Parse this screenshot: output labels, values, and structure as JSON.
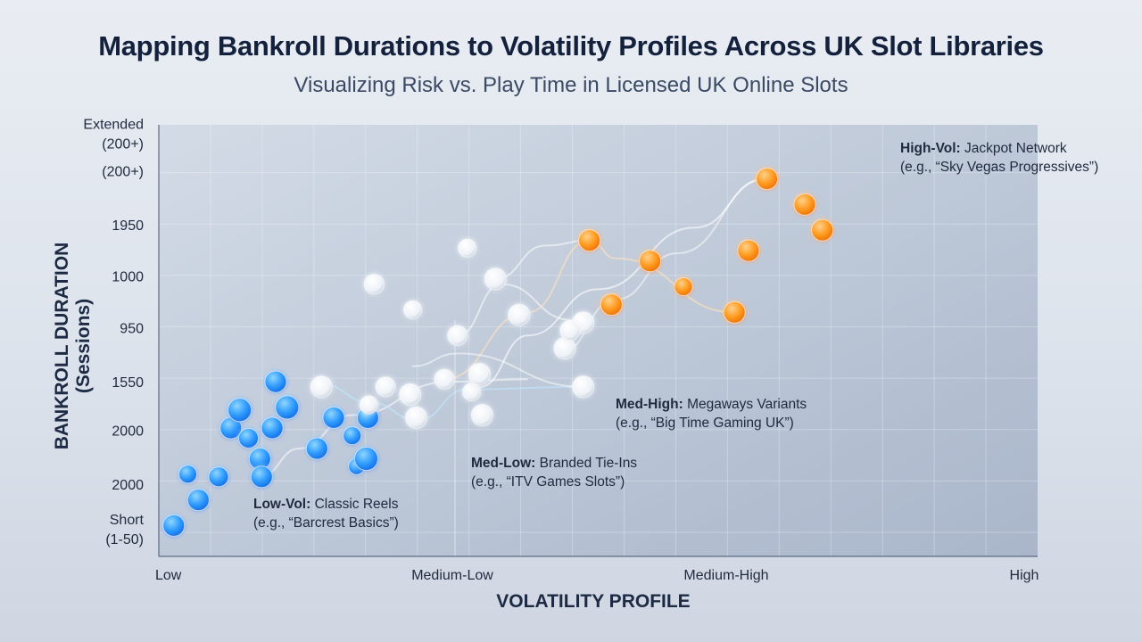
{
  "title": "Mapping Bankroll Durations to Volatility Profiles Across UK Slot Libraries",
  "subtitle": "Visualizing Risk vs. Play Time in Licensed UK Online Slots",
  "colors": {
    "low_vol": "#2f9bff",
    "med_low": "#ffffff",
    "med_high": "#ffffff",
    "high_vol": "#ff9a1f",
    "plot_bg": "#b9c5d6"
  },
  "chart_data": {
    "type": "scatter",
    "title": "Mapping Bankroll Durations to Volatility Profiles Across UK Slot Libraries",
    "subtitle": "Visualizing Risk vs. Play Time in Licensed UK Online Slots",
    "xlabel": "VOLATILITY PROFILE",
    "ylabel": [
      "BANKROLL DURATION",
      "(Sessions)"
    ],
    "x_ticks": [
      "Low",
      "Medium-Low",
      "Medium-High",
      "High"
    ],
    "xlim": [
      0,
      10
    ],
    "y_ticks": [
      [
        "Short",
        "(1-50)"
      ],
      [
        "2000"
      ],
      [
        "2000"
      ],
      [
        "1550"
      ],
      [
        "950"
      ],
      [
        "1000"
      ],
      [
        "1950"
      ],
      [
        "(200+)"
      ],
      [
        "Extended",
        "(200+)"
      ]
    ],
    "ylim": [
      0,
      8.4
    ],
    "grid": true,
    "legend": "none",
    "series": [
      {
        "name": "Low-Vol",
        "color": "#2f9bff",
        "points": [
          [
            0.17,
            0.6,
            12
          ],
          [
            0.33,
            1.6,
            10
          ],
          [
            0.45,
            1.1,
            12
          ],
          [
            0.68,
            1.55,
            11
          ],
          [
            0.82,
            2.5,
            12
          ],
          [
            0.92,
            2.85,
            13
          ],
          [
            1.02,
            2.3,
            11
          ],
          [
            1.15,
            1.9,
            12
          ],
          [
            1.17,
            1.55,
            12
          ],
          [
            1.33,
            3.4,
            12
          ],
          [
            1.29,
            2.5,
            12
          ],
          [
            1.46,
            2.9,
            13
          ],
          [
            1.99,
            2.7,
            12
          ],
          [
            1.8,
            2.1,
            12
          ],
          [
            2.2,
            2.35,
            10
          ],
          [
            2.25,
            1.75,
            9
          ],
          [
            2.36,
            1.9,
            13
          ],
          [
            2.38,
            2.7,
            12
          ]
        ]
      },
      {
        "name": "Med-Low",
        "color": "#ffffff",
        "points": [
          [
            1.85,
            3.3,
            12
          ],
          [
            2.39,
            2.95,
            10
          ],
          [
            2.45,
            5.3,
            11
          ],
          [
            2.58,
            3.3,
            11
          ],
          [
            2.86,
            3.15,
            12
          ],
          [
            2.93,
            2.7,
            12
          ],
          [
            2.89,
            4.8,
            10
          ],
          [
            3.25,
            3.45,
            11
          ],
          [
            3.4,
            4.3,
            11
          ],
          [
            3.51,
            6.0,
            10
          ],
          [
            3.56,
            3.2,
            10
          ],
          [
            3.65,
            3.55,
            12
          ],
          [
            3.68,
            2.75,
            12
          ],
          [
            3.83,
            5.4,
            12
          ],
          [
            4.1,
            4.7,
            12
          ],
          [
            4.83,
            4.55,
            12
          ],
          [
            4.83,
            3.3,
            12
          ]
        ]
      },
      {
        "name": "Med-High",
        "color": "#ffffff",
        "points": [
          [
            4.62,
            4.05,
            12
          ],
          [
            4.68,
            4.4,
            11
          ]
        ]
      },
      {
        "name": "High-Vol",
        "color": "#ff9a1f",
        "points": [
          [
            4.9,
            6.15,
            12
          ],
          [
            5.15,
            4.9,
            12
          ],
          [
            5.59,
            5.75,
            12
          ],
          [
            5.97,
            5.25,
            10
          ],
          [
            6.55,
            4.75,
            12
          ],
          [
            6.71,
            5.95,
            12
          ],
          [
            6.92,
            7.35,
            12
          ],
          [
            7.35,
            6.85,
            12
          ],
          [
            7.55,
            6.35,
            12
          ]
        ]
      }
    ],
    "annotations": [
      {
        "bold": "Low-Vol:",
        "text": " Classic Reels",
        "example": "(e.g., “Barcrest Basics”)"
      },
      {
        "bold": "Med-Low:",
        "text": " Branded Tie-Ins",
        "example": "(e.g., “ITV Games Slots”)"
      },
      {
        "bold": "Med-High:",
        "text": " Megaways Variants",
        "example": "(e.g., “Big Time Gaming UK”)"
      },
      {
        "bold": "High-Vol:",
        "text": " Jackpot Network",
        "example": "(e.g., “Sky Vegas Progressives”)"
      }
    ]
  }
}
